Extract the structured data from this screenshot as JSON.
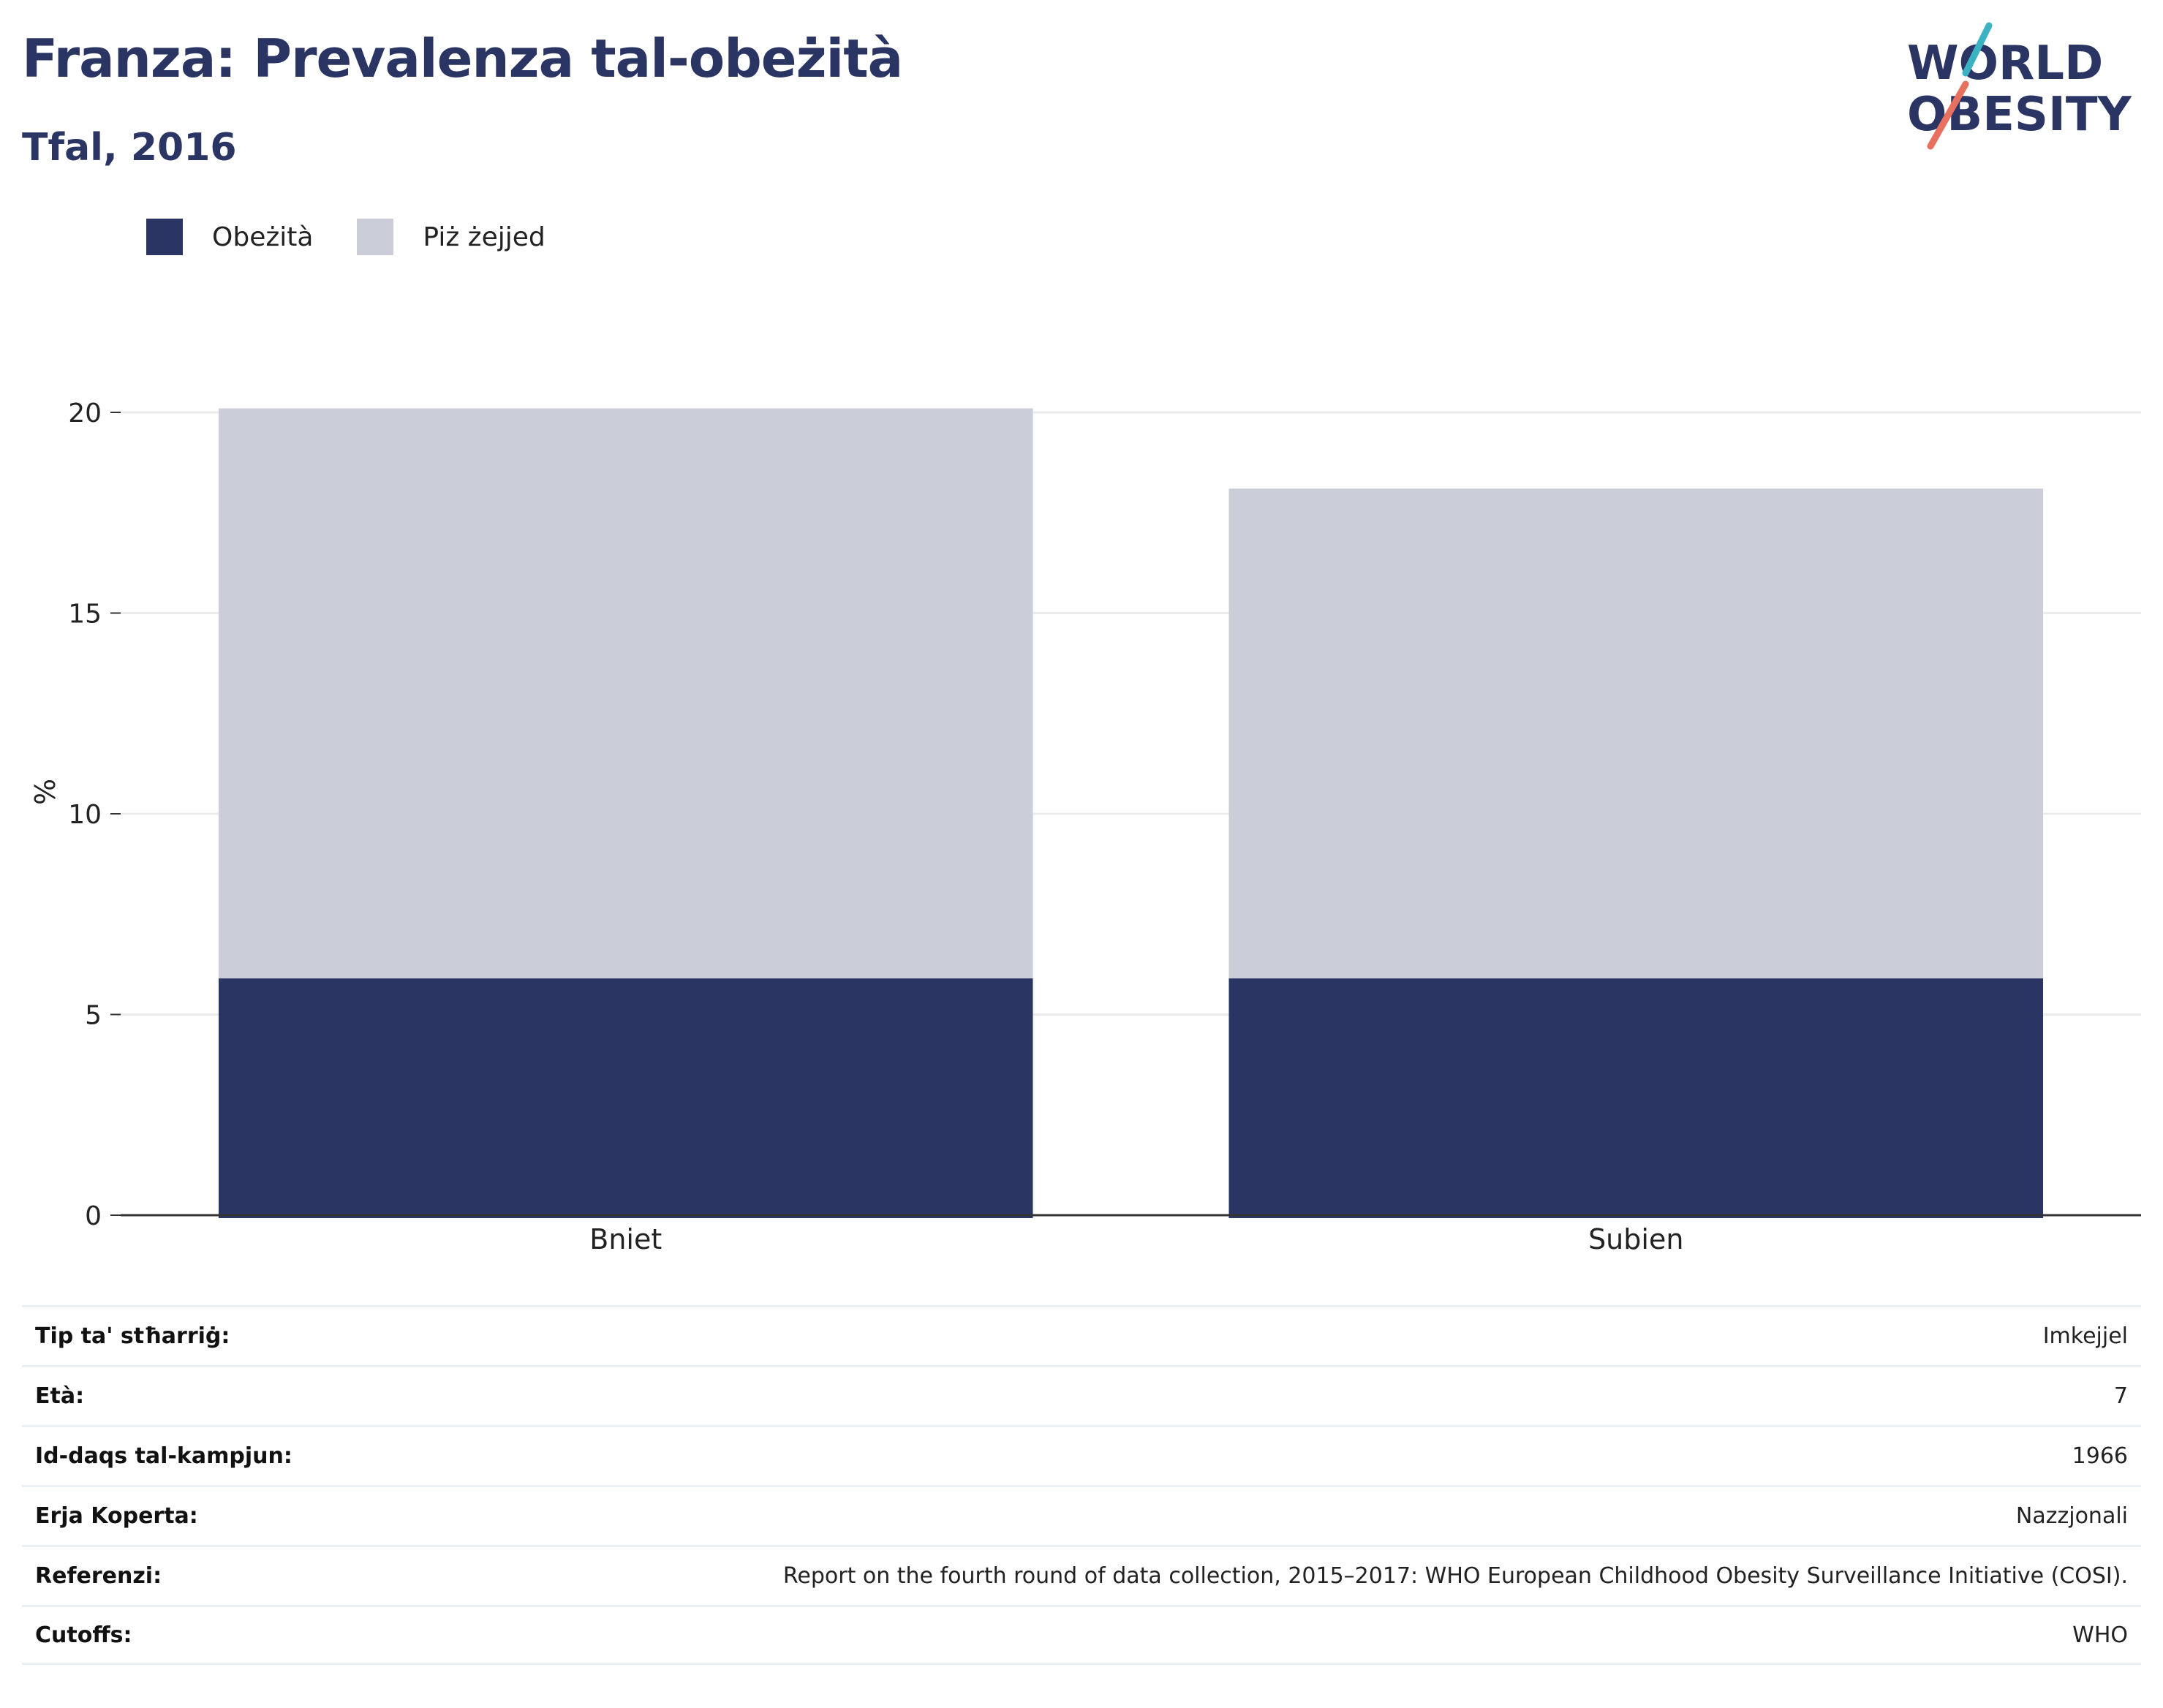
{
  "header": {
    "title": "Franza: Prevalenza tal-obeżità",
    "subtitle": "Tfal, 2016"
  },
  "logo": {
    "line1": "WORLD",
    "line2": "OBESITY",
    "colors": {
      "text": "#2a3564",
      "slash_top": "#3bb3c3",
      "slash_bottom": "#e8705e"
    }
  },
  "legend": [
    {
      "label": "Obeżità",
      "color": "#2a3564"
    },
    {
      "label": "Piż żejjed",
      "color": "#cbcdd8"
    }
  ],
  "chart_data": {
    "type": "bar",
    "stacked": true,
    "categories": [
      "Bniet",
      "Subien"
    ],
    "series": [
      {
        "name": "Obeżità",
        "values": [
          5.9,
          5.9
        ],
        "color": "#2a3564"
      },
      {
        "name": "Piż żejjed",
        "values": [
          14.2,
          12.2
        ],
        "color": "#cbcdd8"
      }
    ],
    "ylabel": "%",
    "ylim": [
      0,
      20
    ],
    "yticks": [
      0,
      5,
      10,
      15,
      20
    ],
    "grid": true,
    "legend_position": "top-left"
  },
  "info": [
    {
      "label": "Tip ta' stħarriġ:",
      "value": "Imkejjel"
    },
    {
      "label": "Età:",
      "value": "7"
    },
    {
      "label": "Id-daqs tal-kampjun:",
      "value": "1966"
    },
    {
      "label": "Erja Koperta:",
      "value": "Nazzjonali"
    },
    {
      "label": "Referenzi:",
      "value": "Report on the fourth round of data collection, 2015–2017: WHO European Childhood Obesity Surveillance Initiative (COSI)."
    },
    {
      "label": "Cutoffs:",
      "value": "WHO"
    }
  ]
}
